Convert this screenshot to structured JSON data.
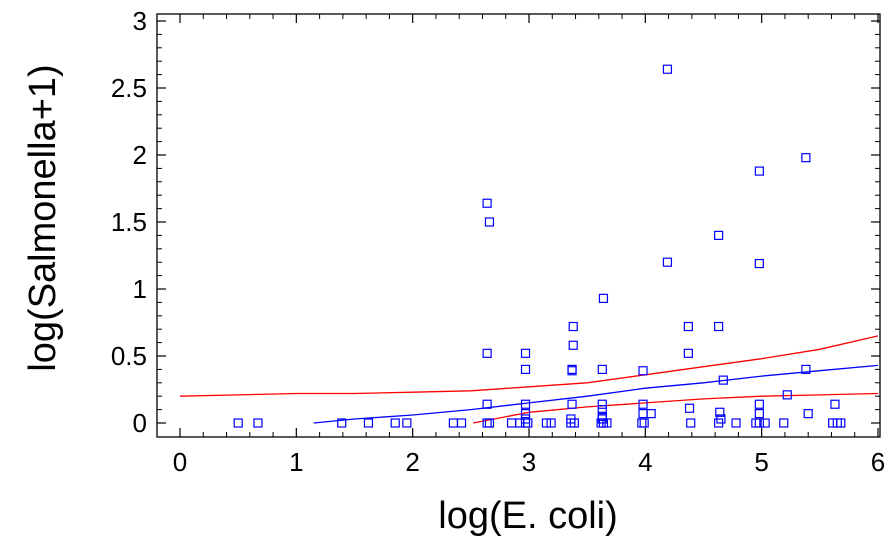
{
  "chart_data": {
    "type": "scatter",
    "title": "",
    "xlabel": "log(E. coli)",
    "ylabel": "log(Salmonella+1)",
    "xlim": [
      0,
      6
    ],
    "ylim": [
      0,
      3
    ],
    "x_ticks": [
      0,
      1,
      2,
      3,
      4,
      5,
      6
    ],
    "x_tick_labels": [
      "0",
      "1",
      "2",
      "3",
      "4",
      "5",
      "6"
    ],
    "y_ticks": [
      0,
      0.5,
      1,
      1.5,
      2,
      2.5,
      3
    ],
    "y_tick_labels": [
      "0",
      "0.5",
      "1",
      "1.5",
      "2",
      "2.5",
      "3"
    ],
    "grid": false,
    "legend": "none",
    "colors": {
      "points": "#0000ff",
      "fit": "#0000ff",
      "limits": "#ff0000"
    },
    "points": {
      "x": [
        0.5,
        0.67,
        1.39,
        1.62,
        1.85,
        1.95,
        2.35,
        2.42,
        2.64,
        2.66,
        2.85,
        2.92,
        2.97,
        2.99,
        3.15,
        3.19,
        3.36,
        3.39,
        3.62,
        3.64,
        3.67,
        3.97,
        3.99,
        4.39,
        4.63,
        4.78,
        4.95,
        4.98,
        5.03,
        5.19,
        5.61,
        5.65,
        5.68,
        2.64,
        2.64,
        2.66,
        2.64,
        2.97,
        2.97,
        2.97,
        2.97,
        2.97,
        3.38,
        3.38,
        3.37,
        3.37,
        3.37,
        3.36,
        3.64,
        3.63,
        3.63,
        3.63,
        3.63,
        3.63,
        3.98,
        3.98,
        3.98,
        4.05,
        4.19,
        4.19,
        4.37,
        4.37,
        4.38,
        4.63,
        4.63,
        4.64,
        4.65,
        4.67,
        4.98,
        4.98,
        4.98,
        4.98,
        5.22,
        5.38,
        5.38,
        5.4,
        5.63
      ],
      "y": [
        0,
        0,
        0,
        0,
        0,
        0,
        0,
        0,
        0,
        0,
        0,
        0,
        0,
        0,
        0,
        0,
        0,
        0,
        0,
        0,
        0,
        0,
        0,
        0,
        0,
        0,
        0,
        0,
        0,
        0,
        0,
        0,
        0,
        1.64,
        0.52,
        1.5,
        0.14,
        0.52,
        0.4,
        0.14,
        0.07,
        0.03,
        0.72,
        0.58,
        0.4,
        0.39,
        0.14,
        0.03,
        0.93,
        0.4,
        0.14,
        0.1,
        0.05,
        0.03,
        0.39,
        0.14,
        0.07,
        0.07,
        2.64,
        1.2,
        0.72,
        0.52,
        0.11,
        1.4,
        0.72,
        0.08,
        0.03,
        0.32,
        1.88,
        1.19,
        0.14,
        0.07,
        0.21,
        1.98,
        0.4,
        0.07,
        0.14
      ]
    },
    "series": [
      {
        "style": "fit",
        "x": [
          1.15,
          1.5,
          2.0,
          2.5,
          3.0,
          3.5,
          4.0,
          4.5,
          5.0,
          5.5,
          6.0
        ],
        "y": [
          0.0,
          0.03,
          0.06,
          0.1,
          0.15,
          0.2,
          0.26,
          0.3,
          0.35,
          0.39,
          0.43
        ]
      },
      {
        "style": "upper-limit",
        "x": [
          0.0,
          0.5,
          1.0,
          1.5,
          2.0,
          2.5,
          3.0,
          3.5,
          4.0,
          4.5,
          5.0,
          5.5,
          6.0
        ],
        "y": [
          0.2,
          0.21,
          0.22,
          0.22,
          0.23,
          0.24,
          0.27,
          0.3,
          0.36,
          0.42,
          0.48,
          0.55,
          0.65
        ]
      },
      {
        "style": "lower-limit",
        "x": [
          2.52,
          3.0,
          3.5,
          4.0,
          4.5,
          5.0,
          5.5,
          6.0
        ],
        "y": [
          0.0,
          0.08,
          0.12,
          0.15,
          0.18,
          0.2,
          0.21,
          0.22
        ]
      }
    ]
  }
}
